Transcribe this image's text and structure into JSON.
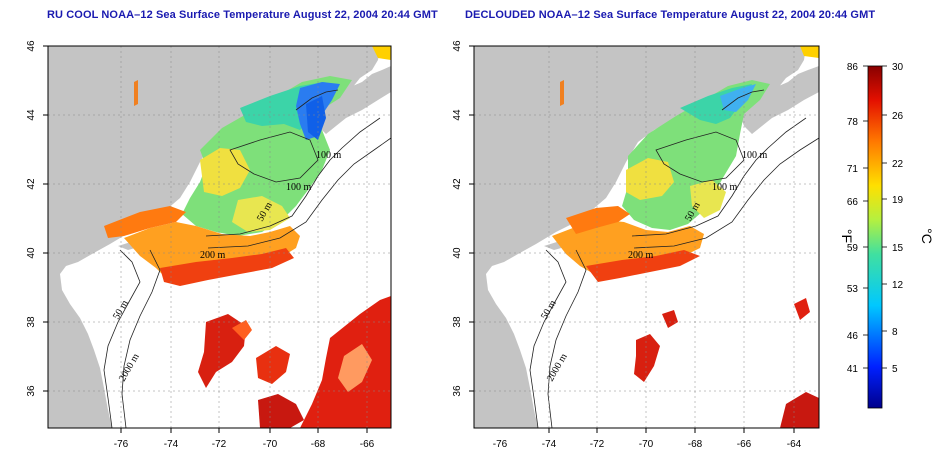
{
  "titles": {
    "left": "RU COOL NOAA–12 Sea Surface Temperature August 22, 2004 20:44 GMT",
    "right": "DECLOUDED NOAA–12 Sea Surface Temperature August 22, 2004 20:44 GMT"
  },
  "axes": {
    "lon_ticks": [
      "-76",
      "-74",
      "-72",
      "-70",
      "-68",
      "-66",
      "-64"
    ],
    "lat_ticks": [
      "46",
      "44",
      "42",
      "40",
      "38",
      "36"
    ]
  },
  "contours": {
    "left": [
      "100 m",
      "100 m",
      "50 m",
      "200 m",
      "50 m",
      "2000 m"
    ],
    "right": [
      "100 m",
      "100 m",
      "50 m",
      "200 m",
      "50 m",
      "2000 m"
    ]
  },
  "colorbar": {
    "fahrenheit_label": "°F",
    "celsius_label": "°C",
    "fahrenheit_ticks": [
      "86",
      "78",
      "71",
      "66",
      "59",
      "53",
      "46",
      "41"
    ],
    "celsius_ticks": [
      "30",
      "26",
      "22",
      "19",
      "15",
      "12",
      "8",
      "5"
    ]
  },
  "colors": {
    "land": "#c4c4c4",
    "ocean": "#ffffff",
    "title": "#1a1ab0"
  }
}
